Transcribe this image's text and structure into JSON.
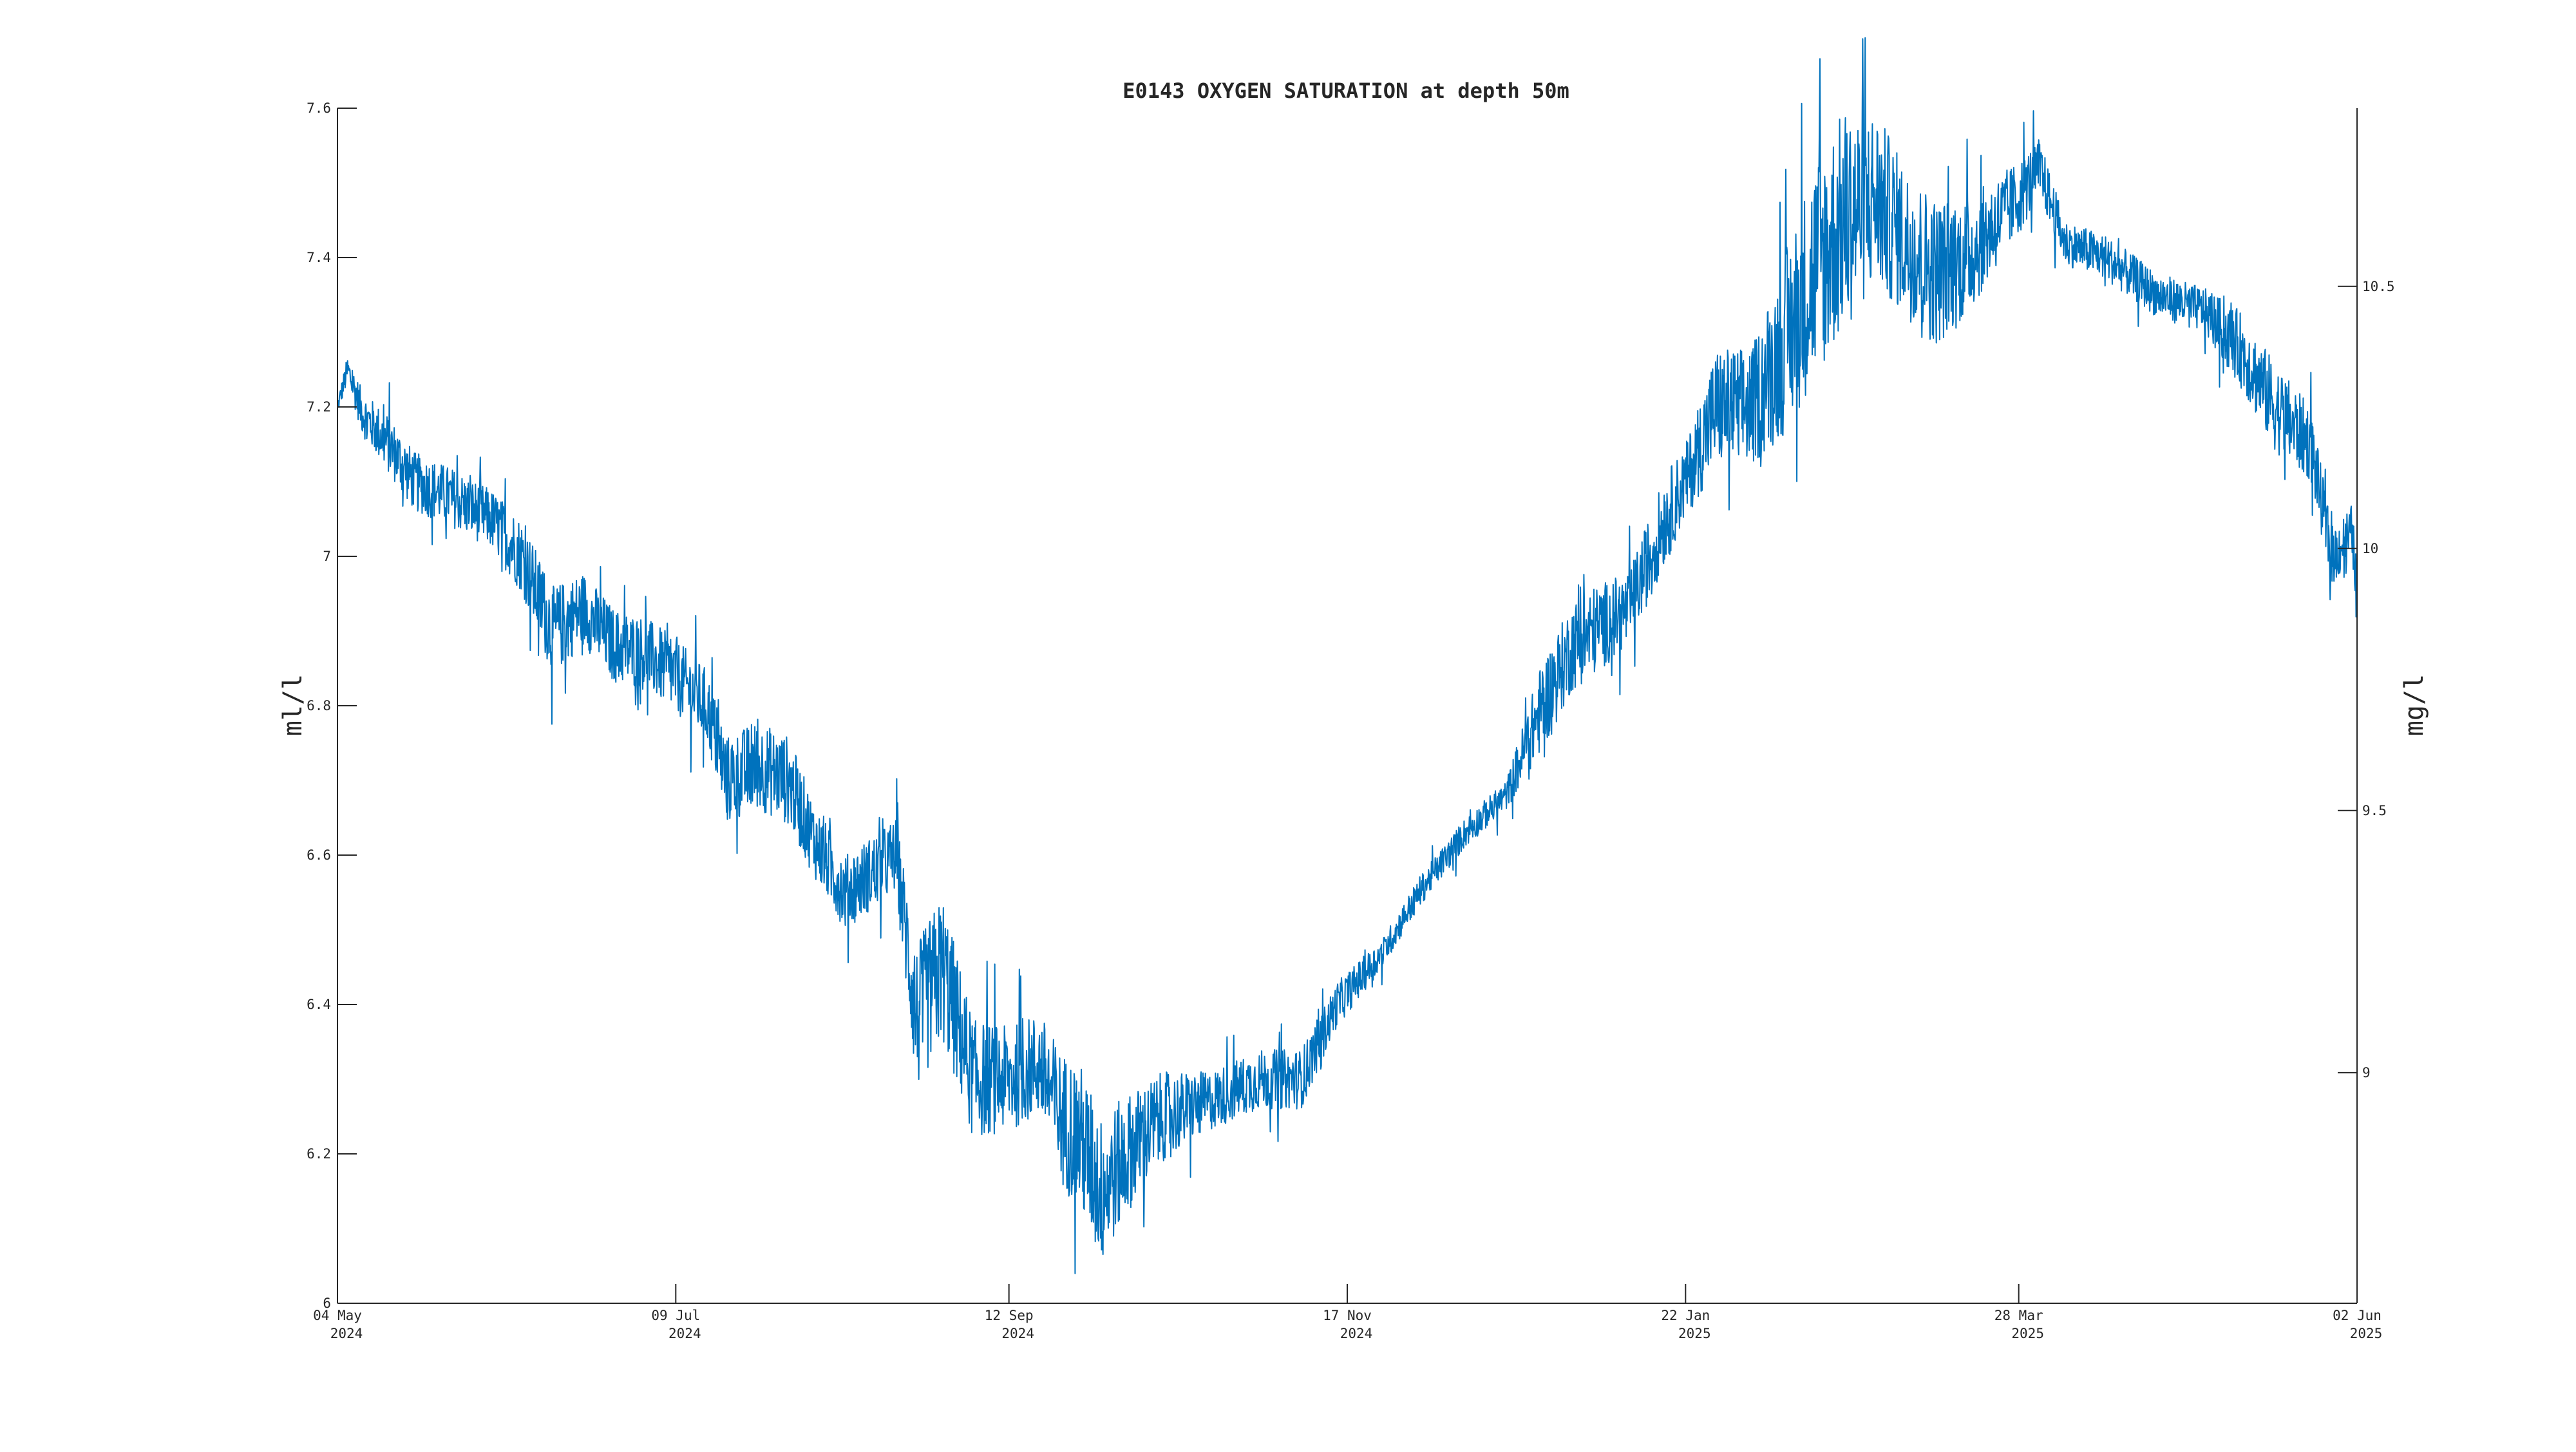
{
  "chart_data": {
    "type": "line",
    "title": "E0143 OXYGEN SATURATION at depth 50m",
    "ylabel": "ml/l",
    "ylabel_right": "mg/l",
    "ylim": [
      6.0,
      7.6
    ],
    "ylim_right": [
      8.56,
      10.84
    ],
    "yticks": [
      "6",
      "6.2",
      "6.4",
      "6.6",
      "6.8",
      "7",
      "7.2",
      "7.4",
      "7.6"
    ],
    "yticks_right": [
      "9",
      "9.5",
      "10",
      "10.5"
    ],
    "xlim": [
      "2024-05-04",
      "2025-06-02"
    ],
    "xticks": [
      {
        "date": "2024-05-04",
        "line1": "04 May",
        "line2": "2024"
      },
      {
        "date": "2024-07-09",
        "line1": "09 Jul",
        "line2": "2024"
      },
      {
        "date": "2024-09-12",
        "line1": "12 Sep",
        "line2": "2024"
      },
      {
        "date": "2024-11-17",
        "line1": "17 Nov",
        "line2": "2024"
      },
      {
        "date": "2025-01-22",
        "line1": "22 Jan",
        "line2": "2025"
      },
      {
        "date": "2025-03-28",
        "line1": "28 Mar",
        "line2": "2025"
      },
      {
        "date": "2025-06-02",
        "line1": "02 Jun",
        "line2": "2025"
      }
    ],
    "grid": false,
    "series": [
      {
        "color": "#0072BD",
        "x": [
          "2024-05-04",
          "2024-05-06",
          "2024-05-09",
          "2024-05-14",
          "2024-05-19",
          "2024-05-26",
          "2024-06-03",
          "2024-06-09",
          "2024-06-15",
          "2024-06-21",
          "2024-06-27",
          "2024-07-03",
          "2024-07-09",
          "2024-07-15",
          "2024-07-19",
          "2024-07-25",
          "2024-07-31",
          "2024-08-05",
          "2024-08-11",
          "2024-08-17",
          "2024-08-21",
          "2024-08-25",
          "2024-08-30",
          "2024-09-05",
          "2024-09-12",
          "2024-09-18",
          "2024-09-22",
          "2024-09-26",
          "2024-09-30",
          "2024-10-05",
          "2024-10-12",
          "2024-10-21",
          "2024-10-31",
          "2024-11-08",
          "2024-11-15",
          "2024-11-24",
          "2024-12-01",
          "2024-12-10",
          "2024-12-18",
          "2024-12-25",
          "2024-12-31",
          "2025-01-04",
          "2025-01-11",
          "2025-01-18",
          "2025-01-22",
          "2025-01-28",
          "2025-02-04",
          "2025-02-10",
          "2025-02-16",
          "2025-02-22",
          "2025-02-28",
          "2025-03-06",
          "2025-03-12",
          "2025-03-18",
          "2025-03-24",
          "2025-03-28",
          "2025-04-01",
          "2025-04-06",
          "2025-04-14",
          "2025-04-24",
          "2025-05-03",
          "2025-05-10",
          "2025-05-17",
          "2025-05-24",
          "2025-05-28",
          "2025-06-01",
          "2025-06-02"
        ],
        "y": [
          7.2,
          7.25,
          7.19,
          7.15,
          7.1,
          7.08,
          7.05,
          7.0,
          6.9,
          6.93,
          6.88,
          6.87,
          6.84,
          6.8,
          6.7,
          6.72,
          6.7,
          6.62,
          6.55,
          6.58,
          6.6,
          6.38,
          6.45,
          6.3,
          6.3,
          6.32,
          6.25,
          6.22,
          6.15,
          6.2,
          6.25,
          6.27,
          6.3,
          6.3,
          6.4,
          6.47,
          6.55,
          6.63,
          6.68,
          6.8,
          6.88,
          6.9,
          6.93,
          7.05,
          7.1,
          7.2,
          7.2,
          7.28,
          7.38,
          7.45,
          7.48,
          7.42,
          7.38,
          7.4,
          7.45,
          7.48,
          7.52,
          7.42,
          7.4,
          7.35,
          7.33,
          7.28,
          7.2,
          7.15,
          7.0,
          7.03,
          6.96
        ],
        "noise": [
          0.01,
          0.02,
          0.03,
          0.04,
          0.04,
          0.04,
          0.04,
          0.05,
          0.06,
          0.05,
          0.05,
          0.05,
          0.05,
          0.05,
          0.06,
          0.06,
          0.06,
          0.05,
          0.05,
          0.05,
          0.05,
          0.1,
          0.1,
          0.08,
          0.07,
          0.07,
          0.09,
          0.1,
          0.1,
          0.08,
          0.06,
          0.04,
          0.04,
          0.04,
          0.03,
          0.02,
          0.02,
          0.02,
          0.02,
          0.06,
          0.06,
          0.06,
          0.05,
          0.06,
          0.05,
          0.08,
          0.08,
          0.12,
          0.15,
          0.15,
          0.12,
          0.1,
          0.1,
          0.08,
          0.06,
          0.05,
          0.04,
          0.03,
          0.03,
          0.03,
          0.03,
          0.05,
          0.06,
          0.05,
          0.04,
          0.04,
          0.03
        ]
      }
    ]
  }
}
